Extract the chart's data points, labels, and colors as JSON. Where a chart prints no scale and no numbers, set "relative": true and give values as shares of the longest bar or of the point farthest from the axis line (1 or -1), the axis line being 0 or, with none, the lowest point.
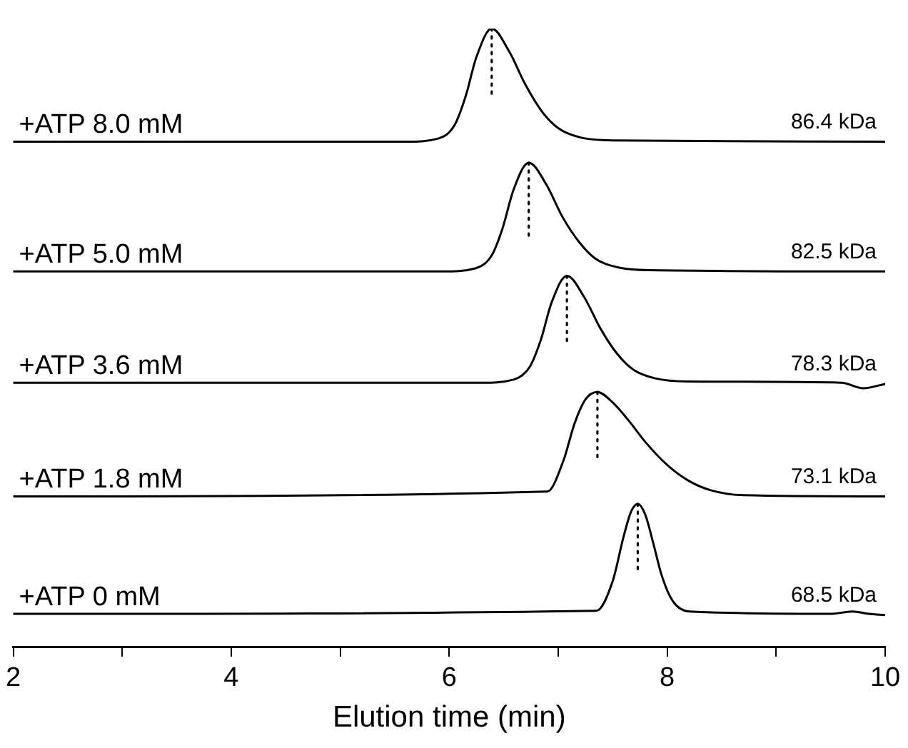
{
  "chart_data": {
    "type": "line",
    "relative": true,
    "xlabel": "Elution time (min)",
    "xlim": [
      2,
      10
    ],
    "xticks": [
      2,
      {
        "value": 3,
        "label": null
      },
      4,
      {
        "value": 5,
        "label": null
      },
      6,
      {
        "value": 7,
        "label": null
      },
      8,
      {
        "value": 9,
        "label": null
      },
      10
    ],
    "tick_labels": "x",
    "grid": false,
    "legend": false,
    "marker": "none",
    "line_style": "solid",
    "series": [
      {
        "name": "+ATP 8.0 mM",
        "color": "#000000",
        "x": [
          2,
          5.6,
          5.9,
          6.05,
          6.15,
          6.25,
          6.39,
          6.55,
          6.7,
          6.85,
          7.0,
          7.2,
          7.5,
          10
        ],
        "values": [
          0.817,
          0.817,
          0.822,
          0.844,
          0.89,
          0.954,
          1.0,
          0.963,
          0.909,
          0.866,
          0.839,
          0.824,
          0.819,
          0.817
        ]
      },
      {
        "name": "+ATP 5.0 mM",
        "color": "#000000",
        "x": [
          2,
          5.94,
          6.24,
          6.39,
          6.49,
          6.59,
          6.73,
          6.89,
          7.04,
          7.19,
          7.34,
          7.54,
          7.84,
          10
        ],
        "values": [
          0.607,
          0.607,
          0.612,
          0.633,
          0.677,
          0.739,
          0.783,
          0.748,
          0.695,
          0.655,
          0.628,
          0.614,
          0.609,
          0.607
        ]
      },
      {
        "name": "+ATP 3.6 mM",
        "color": "#000000",
        "x": [
          2,
          6.29,
          6.59,
          6.74,
          6.84,
          6.94,
          7.08,
          7.24,
          7.39,
          7.54,
          7.69,
          7.89,
          8.19,
          9.6,
          9.8,
          10
        ],
        "values": [
          0.427,
          0.427,
          0.432,
          0.453,
          0.496,
          0.557,
          0.6,
          0.565,
          0.514,
          0.474,
          0.448,
          0.434,
          0.429,
          0.427,
          0.418,
          0.425
        ]
      },
      {
        "name": "+ATP 1.8 mM",
        "color": "#000000",
        "x": [
          2,
          6.9,
          7.05,
          7.15,
          7.25,
          7.36,
          7.5,
          7.65,
          7.8,
          8.0,
          8.2,
          8.4,
          8.7,
          10
        ],
        "values": [
          0.243,
          0.251,
          0.302,
          0.361,
          0.4,
          0.412,
          0.395,
          0.365,
          0.331,
          0.294,
          0.268,
          0.253,
          0.245,
          0.243
        ]
      },
      {
        "name": "+ATP 0 mM",
        "color": "#000000",
        "x": [
          2,
          7.35,
          7.5,
          7.6,
          7.67,
          7.73,
          7.8,
          7.87,
          7.95,
          8.05,
          8.2,
          9.5,
          9.7,
          9.85,
          10
        ],
        "values": [
          0.053,
          0.058,
          0.106,
          0.178,
          0.219,
          0.231,
          0.213,
          0.169,
          0.115,
          0.074,
          0.057,
          0.053,
          0.057,
          0.053,
          0.051
        ]
      },
      {
        "color": "#000000",
        "line_style": "dotted",
        "x": [
          6.39,
          6.39
        ],
        "values": [
          1.0,
          0.889
        ]
      },
      {
        "color": "#000000",
        "line_style": "dotted",
        "x": [
          6.73,
          6.73
        ],
        "values": [
          0.783,
          0.658
        ]
      },
      {
        "color": "#000000",
        "line_style": "dotted",
        "x": [
          7.08,
          7.08
        ],
        "values": [
          0.6,
          0.489
        ]
      },
      {
        "color": "#000000",
        "line_style": "dotted",
        "x": [
          7.36,
          7.36
        ],
        "values": [
          0.412,
          0.306
        ]
      },
      {
        "color": "#000000",
        "line_style": "dotted",
        "x": [
          7.73,
          7.73
        ],
        "values": [
          0.231,
          0.123
        ]
      }
    ],
    "annotations": [
      "86.4 kDa",
      "82.5 kDa",
      "78.3 kDa",
      "73.1 kDa",
      "68.5 kDa"
    ]
  }
}
